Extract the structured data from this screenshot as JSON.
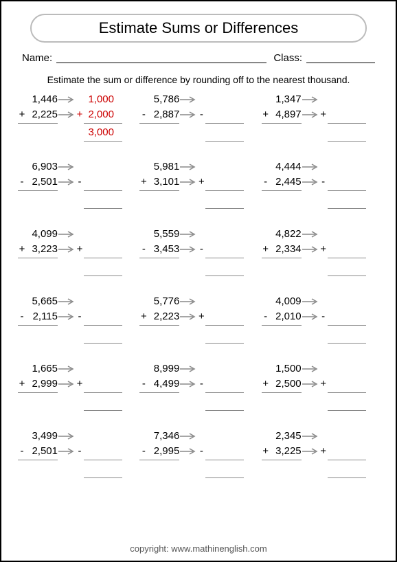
{
  "title": "Estimate Sums or Differences",
  "name_label": "Name:",
  "class_label": "Class:",
  "instruction": "Estimate the sum or difference by rounding off to the nearest thousand.",
  "arrow_color": "#888888",
  "example_color": "#cc0000",
  "problems": [
    {
      "a": "1,446",
      "b": "2,225",
      "op": "+",
      "ra": "1,000",
      "rb": "2,000",
      "rr": "3,000",
      "show": true
    },
    {
      "a": "5,786",
      "b": "2,887",
      "op": "-"
    },
    {
      "a": "1,347",
      "b": "4,897",
      "op": "+"
    },
    {
      "a": "6,903",
      "b": "2,501",
      "op": "-"
    },
    {
      "a": "5,981",
      "b": "3,101",
      "op": "+"
    },
    {
      "a": "4,444",
      "b": "2,445",
      "op": "-"
    },
    {
      "a": "4,099",
      "b": "3,223",
      "op": "+"
    },
    {
      "a": "5,559",
      "b": "3,453",
      "op": "-"
    },
    {
      "a": "4,822",
      "b": "2,334",
      "op": "+"
    },
    {
      "a": "5,665",
      "b": "2,115",
      "op": "-"
    },
    {
      "a": "5,776",
      "b": "2,223",
      "op": "+"
    },
    {
      "a": "4,009",
      "b": "2,010",
      "op": "-"
    },
    {
      "a": "1,665",
      "b": "2,999",
      "op": "+"
    },
    {
      "a": "8,999",
      "b": "4,499",
      "op": "-"
    },
    {
      "a": "1,500",
      "b": "2,500",
      "op": "+"
    },
    {
      "a": "3,499",
      "b": "2,501",
      "op": "-"
    },
    {
      "a": "7,346",
      "b": "2,995",
      "op": "-"
    },
    {
      "a": "2,345",
      "b": "3,225",
      "op": "+"
    }
  ],
  "copyright": "copyright:   www.mathinenglish.com"
}
